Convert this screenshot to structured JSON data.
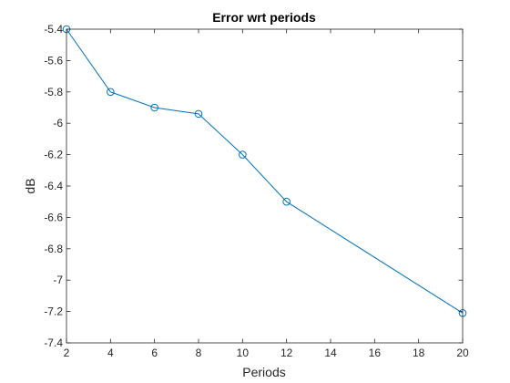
{
  "chart_data": {
    "type": "line",
    "title": "Error wrt periods",
    "xlabel": "Periods",
    "ylabel": "dB",
    "xlim": [
      2,
      20
    ],
    "ylim": [
      -7.4,
      -5.4
    ],
    "xticks": [
      2,
      4,
      6,
      8,
      10,
      12,
      14,
      16,
      18,
      20
    ],
    "yticks": [
      -5.4,
      -5.6,
      -5.8,
      -6,
      -6.2,
      -6.4,
      -6.6,
      -6.8,
      -7,
      -7.2,
      -7.4
    ],
    "grid": false,
    "marker": "circle",
    "series": [
      {
        "x": [
          2,
          4,
          6,
          8,
          10,
          12,
          20
        ],
        "values": [
          -5.4,
          -5.8,
          -5.9,
          -5.94,
          -6.2,
          -6.5,
          -7.21
        ],
        "color": "#0072bd"
      }
    ]
  }
}
